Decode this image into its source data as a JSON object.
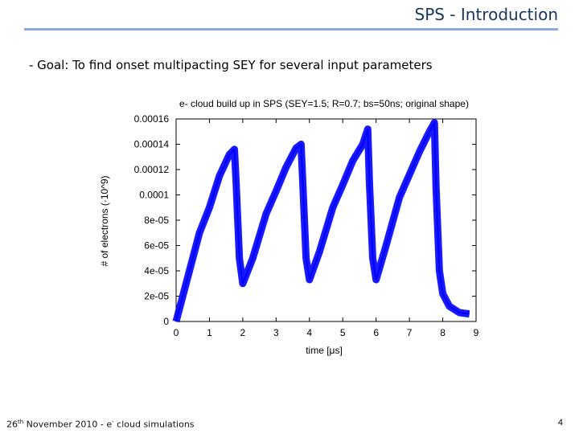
{
  "slide": {
    "title": "SPS - Introduction",
    "goal": "- Goal: To find onset multipacting SEY for several input parameters",
    "footer_day": "26",
    "footer_sup": "th",
    "footer_rest": " November 2010 - e",
    "footer_sup2": "-",
    "footer_tail": " cloud simulations",
    "page_number": "4",
    "accent_color": "#17365d"
  },
  "chart_data": {
    "type": "line",
    "title": "e- cloud build up in SPS (SEY=1.5; R=0.7; bs=50ns; original shape)",
    "xlabel": "time [μs]",
    "ylabel": "# of electrons (·10^9)",
    "xlim": [
      0,
      9
    ],
    "ylim": [
      0,
      0.00016
    ],
    "x_ticks": [
      "0",
      "1",
      "2",
      "3",
      "4",
      "5",
      "6",
      "7",
      "8",
      "9"
    ],
    "y_ticks": [
      "0",
      "2e-05",
      "4e-05",
      "6e-05",
      "8e-05",
      "0.0001",
      "0.00012",
      "0.00014",
      "0.00016"
    ],
    "series_color": "#0000ff",
    "series": [
      {
        "x": [
          0,
          0.3,
          0.7,
          1.0,
          1.3,
          1.6,
          1.75,
          1.8,
          1.9,
          2.0,
          2.3,
          2.7,
          3.0,
          3.3,
          3.6,
          3.75,
          3.8,
          3.9,
          4.0,
          4.3,
          4.7,
          5.0,
          5.3,
          5.6,
          5.75,
          5.8,
          5.9,
          6.0,
          6.3,
          6.7,
          7.0,
          7.3,
          7.6,
          7.75,
          7.8,
          7.9,
          8.0,
          8.2,
          8.5,
          8.8
        ],
        "y": [
          0,
          3e-05,
          7e-05,
          9e-05,
          0.000115,
          0.000132,
          0.000136,
          0.00011,
          5e-05,
          3e-05,
          5e-05,
          8.5e-05,
          0.000103,
          0.000122,
          0.000137,
          0.00014,
          0.00011,
          5e-05,
          3.3e-05,
          5.5e-05,
          9e-05,
          0.000108,
          0.000127,
          0.00014,
          0.000152,
          0.00011,
          5e-05,
          3.3e-05,
          6e-05,
          9.8e-05,
          0.000116,
          0.000134,
          0.00015,
          0.000157,
          0.000105,
          4e-05,
          2.2e-05,
          1.2e-05,
          7e-06,
          6e-06
        ]
      }
    ]
  }
}
